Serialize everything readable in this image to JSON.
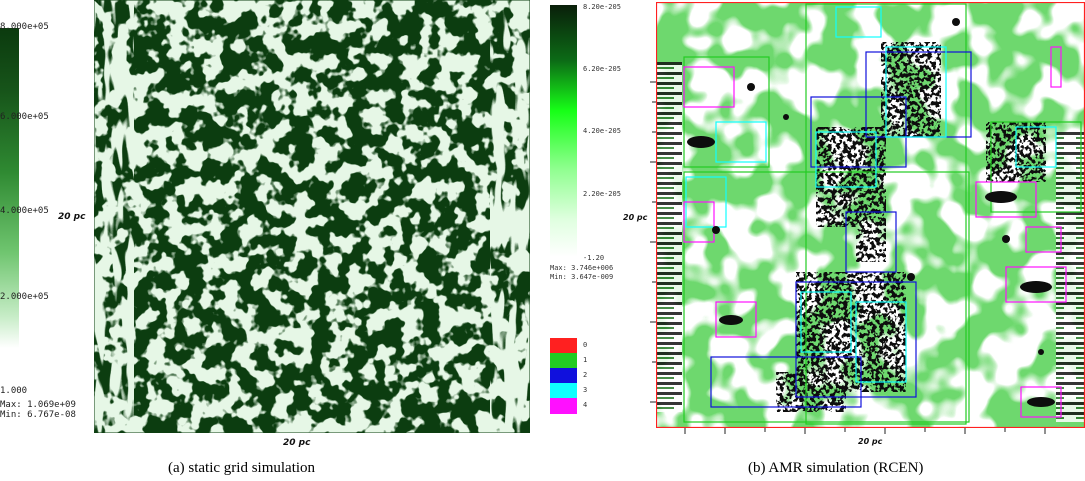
{
  "panel_a": {
    "caption": "(a)  static grid simulation",
    "colorbar_ticks": [
      "8.000e+05",
      "6.000e+05",
      "4.000e+05",
      "2.000e+05",
      "1.000"
    ],
    "max_label": "Max: 1.069e+09",
    "min_label": "Min: 6.767e-08",
    "x_axis_label": "20  pc",
    "y_axis_label": "20  pc"
  },
  "panel_b": {
    "caption": "(b)  AMR simulation (RCEN)",
    "colorbar_ticks": [
      "8.20e-205",
      "6.20e-205",
      "4.20e-205",
      "2.20e-205",
      "-1.20"
    ],
    "max_label": "Max: 3.746e+006",
    "min_label": "Min: 3.647e-009",
    "x_axis_label": "20  pc",
    "y_axis_label": "20  pc",
    "level_legend": [
      {
        "label": "0",
        "color": "#ff2020"
      },
      {
        "label": "1",
        "color": "#22cc22"
      },
      {
        "label": "2",
        "color": "#1010dd"
      },
      {
        "label": "3",
        "color": "#10ffff"
      },
      {
        "label": "4",
        "color": "#ff10ff"
      }
    ]
  },
  "colors": {
    "dark_green": "#0c3d10",
    "mid_green": "#3fbf3f",
    "bright_green": "#18ff18",
    "light_green": "#d8f5d8"
  }
}
